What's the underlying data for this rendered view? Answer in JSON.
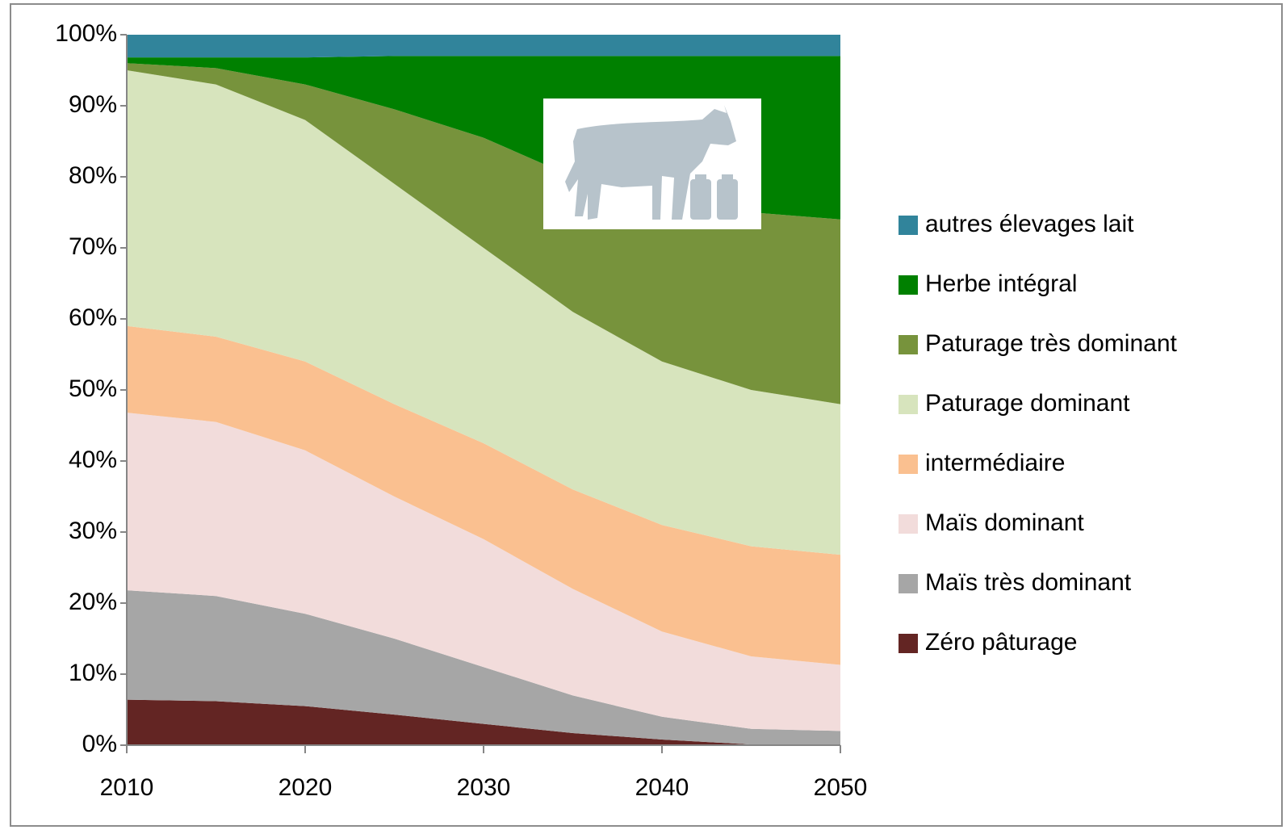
{
  "chart_data": {
    "type": "stacked-area",
    "x": [
      2010,
      2015,
      2020,
      2025,
      2030,
      2035,
      2040,
      2045,
      2050
    ],
    "xlim": [
      2010,
      2050
    ],
    "xticks": [
      2010,
      2020,
      2030,
      2040,
      2050
    ],
    "ylim": [
      0,
      100
    ],
    "yticks": [
      {
        "value": 0,
        "label": "0%"
      },
      {
        "value": 10,
        "label": "10%"
      },
      {
        "value": 20,
        "label": "20%"
      },
      {
        "value": 30,
        "label": "30%"
      },
      {
        "value": 40,
        "label": "40%"
      },
      {
        "value": 50,
        "label": "50%"
      },
      {
        "value": 60,
        "label": "60%"
      },
      {
        "value": 70,
        "label": "70%"
      },
      {
        "value": 80,
        "label": "80%"
      },
      {
        "value": 90,
        "label": "90%"
      },
      {
        "value": 100,
        "label": "100%"
      }
    ],
    "legend": "right",
    "series": [
      {
        "name": "Zéro pâturage",
        "color": "#632523",
        "values": [
          6.4,
          6.2,
          5.5,
          4.3,
          3.0,
          1.7,
          0.8,
          0.1,
          0
        ]
      },
      {
        "name": "Maïs très dominant",
        "color": "#a6a6a6",
        "values": [
          15.4,
          14.8,
          13,
          10.7,
          8,
          5.3,
          3.2,
          2.2,
          2
        ]
      },
      {
        "name": "Maïs dominant",
        "color": "#f2dcdb",
        "values": [
          25,
          24.5,
          23,
          20,
          18,
          15,
          12,
          10.2,
          9.3
        ]
      },
      {
        "name": "intermédiaire",
        "color": "#fac090",
        "values": [
          12.2,
          12,
          12.5,
          13,
          13.5,
          14,
          15,
          15.5,
          15.5
        ]
      },
      {
        "name": "Paturage dominant",
        "color": "#d7e4bd",
        "values": [
          36,
          35.5,
          34,
          31,
          27.5,
          25,
          23,
          22,
          21.2
        ]
      },
      {
        "name": "Paturage très dominant",
        "color": "#77933c",
        "values": [
          1,
          2.3,
          5,
          10.5,
          15.5,
          19,
          23,
          25,
          26
        ]
      },
      {
        "name": "Herbe intégral",
        "color": "#008000",
        "values": [
          0.8,
          1.5,
          3.8,
          7.5,
          11.5,
          17,
          20,
          22,
          23
        ]
      },
      {
        "name": "autres élevages lait",
        "color": "#31849b",
        "values": [
          3.2,
          3.2,
          3.2,
          3,
          3,
          3,
          3,
          3,
          3
        ]
      }
    ]
  }
}
